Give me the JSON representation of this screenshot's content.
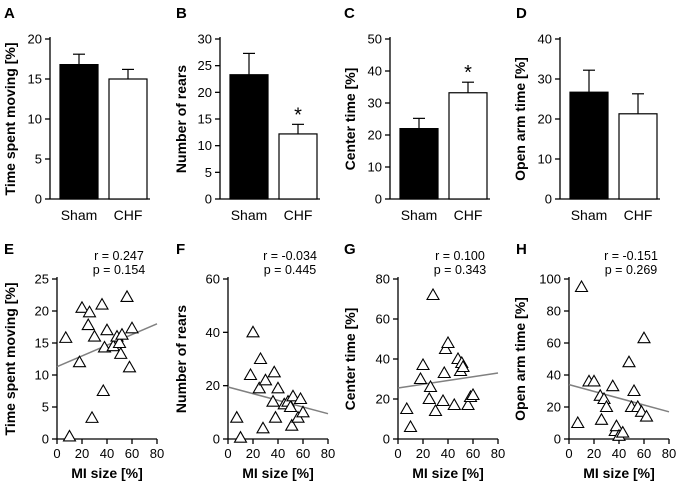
{
  "colors": {
    "bar_sham": "#000000",
    "bar_chf": "#ffffff",
    "regression_line": "#808080"
  },
  "chart_data": [
    {
      "id": "A",
      "type": "bar",
      "title": "",
      "xlabel": "",
      "ylabel": "Time spent moving [%]",
      "ylim": [
        0,
        20
      ],
      "yticks": [
        0,
        5,
        10,
        15,
        20
      ],
      "categories": [
        "Sham",
        "CHF"
      ],
      "values": [
        16.8,
        15.0
      ],
      "errors": [
        1.3,
        1.2
      ],
      "significance": [
        "",
        ""
      ]
    },
    {
      "id": "B",
      "type": "bar",
      "title": "",
      "xlabel": "",
      "ylabel": "Number of rears",
      "ylim": [
        0,
        30
      ],
      "yticks": [
        0,
        5,
        10,
        15,
        20,
        25,
        30
      ],
      "categories": [
        "Sham",
        "CHF"
      ],
      "values": [
        23.3,
        12.2
      ],
      "errors": [
        4.0,
        1.8
      ],
      "significance": [
        "",
        "*"
      ]
    },
    {
      "id": "C",
      "type": "bar",
      "title": "",
      "xlabel": "",
      "ylabel": "Center time [%]",
      "ylim": [
        0,
        50
      ],
      "yticks": [
        0,
        10,
        20,
        30,
        40,
        50
      ],
      "categories": [
        "Sham",
        "CHF"
      ],
      "values": [
        22.0,
        33.2
      ],
      "errors": [
        3.2,
        3.3
      ],
      "significance": [
        "",
        "*"
      ]
    },
    {
      "id": "D",
      "type": "bar",
      "title": "",
      "xlabel": "",
      "ylabel": "Open arm time [%]",
      "ylim": [
        0,
        40
      ],
      "yticks": [
        0,
        10,
        20,
        30,
        40
      ],
      "categories": [
        "Sham",
        "CHF"
      ],
      "values": [
        26.7,
        21.3
      ],
      "errors": [
        5.5,
        5.0
      ],
      "significance": [
        "",
        ""
      ]
    },
    {
      "id": "E",
      "type": "scatter",
      "title": "",
      "xlabel": "MI size [%]",
      "ylabel": "Time spent moving [%]",
      "xlim": [
        0,
        80
      ],
      "ylim": [
        0,
        25
      ],
      "xticks": [
        0,
        20,
        40,
        60,
        80
      ],
      "yticks": [
        0,
        5,
        10,
        15,
        20,
        25
      ],
      "r_label": "r = 0.247",
      "p_label": "p = 0.154",
      "x": [
        7,
        10,
        18,
        20,
        25,
        26,
        28,
        30,
        36,
        37,
        38,
        40,
        45,
        48,
        50,
        51,
        52,
        56,
        58,
        60
      ],
      "y": [
        15.8,
        0.4,
        12,
        20.5,
        17.8,
        19.8,
        3.3,
        16,
        21,
        7.5,
        14.3,
        17,
        14.5,
        16,
        15,
        13.3,
        16.3,
        22.2,
        11.2,
        17.3
      ],
      "line": {
        "x": [
          0,
          80
        ],
        "y": [
          11.3,
          18.0
        ]
      }
    },
    {
      "id": "F",
      "type": "scatter",
      "title": "",
      "xlabel": "MI size [%]",
      "ylabel": "Number of rears",
      "xlim": [
        0,
        80
      ],
      "ylim": [
        0,
        60
      ],
      "xticks": [
        0,
        20,
        40,
        60,
        80
      ],
      "yticks": [
        0,
        20,
        40,
        60
      ],
      "r_label": "r = -0.034",
      "p_label": "p = 0.445",
      "x": [
        7,
        10,
        18,
        20,
        25,
        26,
        28,
        30,
        36,
        37,
        38,
        40,
        45,
        48,
        50,
        51,
        52,
        56,
        58,
        60
      ],
      "y": [
        8,
        0.5,
        24,
        40,
        19,
        30,
        4,
        22,
        14,
        25,
        8,
        19,
        13,
        14,
        12,
        5,
        16,
        8,
        15,
        10
      ],
      "line": {
        "x": [
          0,
          80
        ],
        "y": [
          19.5,
          9.5
        ]
      }
    },
    {
      "id": "G",
      "type": "scatter",
      "title": "",
      "xlabel": "MI size [%]",
      "ylabel": "Center time [%]",
      "xlim": [
        0,
        80
      ],
      "ylim": [
        0,
        80
      ],
      "xticks": [
        0,
        20,
        40,
        60,
        80
      ],
      "yticks": [
        0,
        20,
        40,
        60,
        80
      ],
      "r_label": "r = 0.100",
      "p_label": "p = 0.343",
      "x": [
        7,
        10,
        18,
        20,
        25,
        26,
        28,
        30,
        36,
        37,
        38,
        40,
        45,
        48,
        50,
        51,
        52,
        56,
        58,
        60
      ],
      "y": [
        15,
        6,
        30,
        37,
        20,
        26,
        72,
        14,
        19,
        33,
        45,
        48,
        17,
        40,
        34,
        38,
        36,
        17,
        21,
        22
      ],
      "line": {
        "x": [
          0,
          80
        ],
        "y": [
          25.5,
          33.0
        ]
      }
    },
    {
      "id": "H",
      "type": "scatter",
      "title": "",
      "xlabel": "MI size [%]",
      "ylabel": "Open arm time [%]",
      "xlim": [
        0,
        80
      ],
      "ylim": [
        0,
        100
      ],
      "xticks": [
        0,
        20,
        40,
        60,
        80
      ],
      "yticks": [
        0,
        20,
        40,
        60,
        80,
        100
      ],
      "r_label": "r = -0.151",
      "p_label": "p = 0.269",
      "x": [
        7,
        10,
        16,
        20,
        25,
        26,
        28,
        30,
        35,
        37,
        38,
        40,
        43,
        48,
        50,
        52,
        55,
        58,
        60,
        62
      ],
      "y": [
        10,
        95,
        36,
        36,
        27,
        12,
        25,
        20,
        33,
        5,
        8,
        2,
        4,
        48,
        20,
        30,
        20,
        17,
        63,
        14
      ],
      "line": {
        "x": [
          0,
          80
        ],
        "y": [
          34.0,
          17.0
        ]
      }
    }
  ]
}
